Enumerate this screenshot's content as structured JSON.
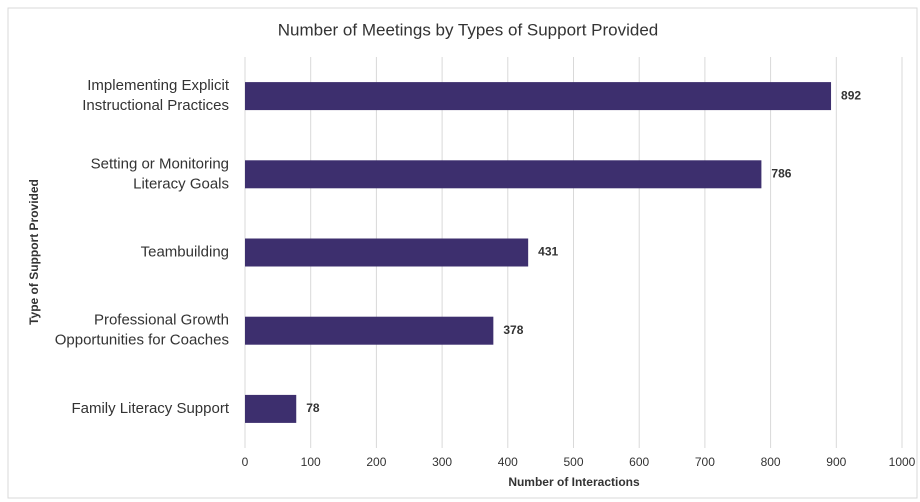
{
  "chart_data": {
    "type": "bar",
    "orientation": "horizontal",
    "title": "Number of Meetings by Types of Support Provided",
    "x_label": "Number of Interactions",
    "y_label": "Type of Support Provided",
    "categories": [
      "Implementing Explicit\nInstructional Practices",
      "Setting or Monitoring\nLiteracy Goals",
      "Teambuilding",
      "Professional Growth\nOpportunities for Coaches",
      "Family Literacy Support"
    ],
    "values": [
      892,
      786,
      431,
      378,
      78
    ],
    "color": "#3d2f6e",
    "xlim": [
      0,
      1000
    ],
    "xticks": [
      0,
      100,
      200,
      300,
      400,
      500,
      600,
      700,
      800,
      900,
      1000
    ],
    "grid": true
  }
}
